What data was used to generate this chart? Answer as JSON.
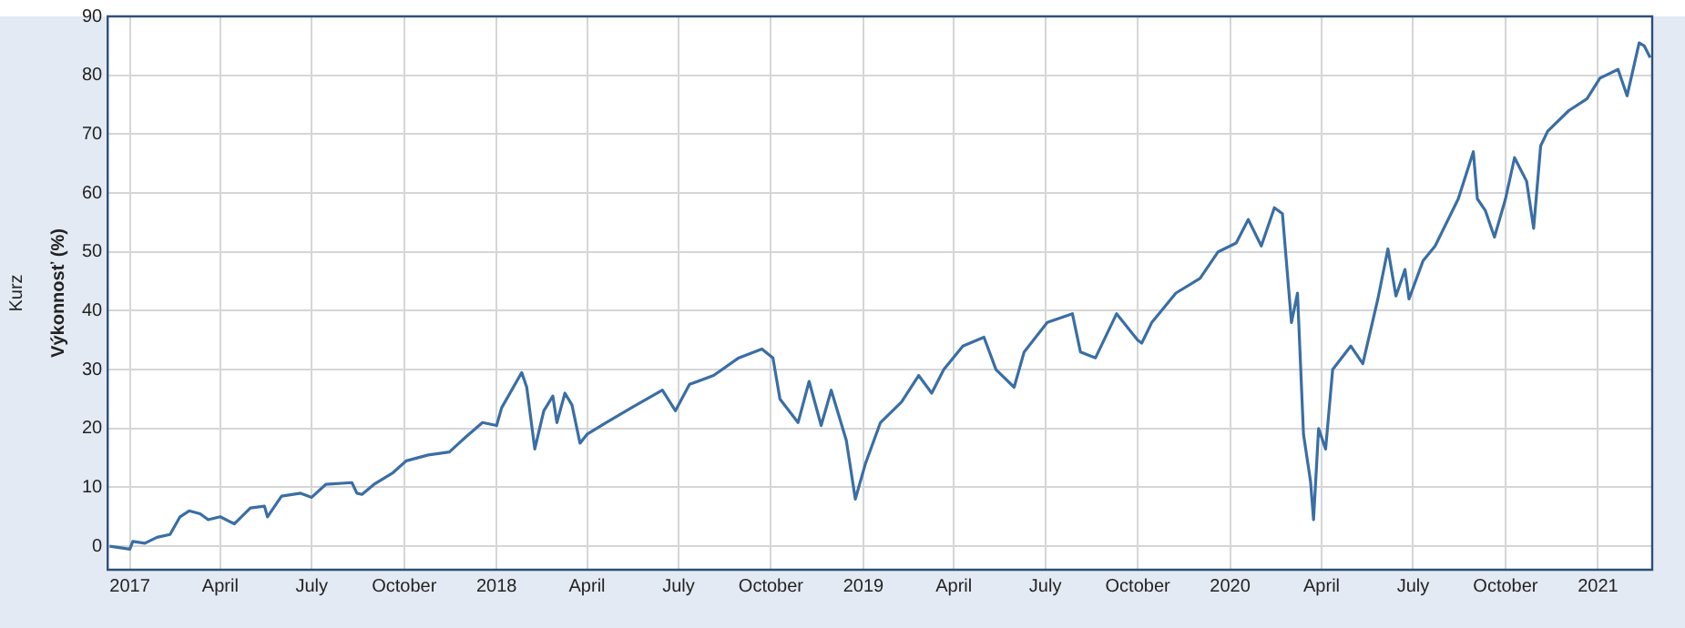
{
  "chart_data": {
    "type": "line",
    "ylabel": "Výkonnosť (%)",
    "annotations": [
      "Kurz"
    ],
    "grid": true,
    "legend": false,
    "marker": "none",
    "line_style": "solid",
    "xlim": [
      "2016-12-10",
      "2021-02-24"
    ],
    "ylim": [
      -4,
      90
    ],
    "yticks": [
      0,
      10,
      20,
      30,
      40,
      50,
      60,
      70,
      80,
      90
    ],
    "xticks": [
      {
        "value": "2017-01-01",
        "label": "2017"
      },
      {
        "value": "2017-04-01",
        "label": "April"
      },
      {
        "value": "2017-07-01",
        "label": "July"
      },
      {
        "value": "2017-10-01",
        "label": "October"
      },
      {
        "value": "2018-01-01",
        "label": "2018"
      },
      {
        "value": "2018-04-01",
        "label": "April"
      },
      {
        "value": "2018-07-01",
        "label": "July"
      },
      {
        "value": "2018-10-01",
        "label": "October"
      },
      {
        "value": "2019-01-01",
        "label": "2019"
      },
      {
        "value": "2019-04-01",
        "label": "April"
      },
      {
        "value": "2019-07-01",
        "label": "July"
      },
      {
        "value": "2019-10-01",
        "label": "October"
      },
      {
        "value": "2020-01-01",
        "label": "2020"
      },
      {
        "value": "2020-04-01",
        "label": "April"
      },
      {
        "value": "2020-07-01",
        "label": "July"
      },
      {
        "value": "2020-10-01",
        "label": "October"
      },
      {
        "value": "2021-01-01",
        "label": "2021"
      }
    ],
    "series": [
      {
        "color": "#3a6ea5",
        "x": [
          "2016-12-12",
          "2017-01-01",
          "2017-01-04",
          "2017-01-16",
          "2017-01-28",
          "2017-02-10",
          "2017-02-20",
          "2017-03-01",
          "2017-03-12",
          "2017-03-20",
          "2017-04-01",
          "2017-04-15",
          "2017-05-01",
          "2017-05-15",
          "2017-05-18",
          "2017-06-01",
          "2017-06-20",
          "2017-07-01",
          "2017-07-15",
          "2017-08-10",
          "2017-08-15",
          "2017-08-20",
          "2017-09-01",
          "2017-09-20",
          "2017-10-03",
          "2017-10-25",
          "2017-11-15",
          "2017-12-01",
          "2017-12-18",
          "2018-01-01",
          "2018-01-06",
          "2018-01-26",
          "2018-01-31",
          "2018-02-08",
          "2018-02-17",
          "2018-02-26",
          "2018-03-02",
          "2018-03-10",
          "2018-03-17",
          "2018-03-25",
          "2018-04-01",
          "2018-04-20",
          "2018-05-15",
          "2018-06-15",
          "2018-06-28",
          "2018-07-12",
          "2018-08-05",
          "2018-08-30",
          "2018-09-22",
          "2018-10-03",
          "2018-10-10",
          "2018-10-28",
          "2018-11-08",
          "2018-11-20",
          "2018-11-30",
          "2018-12-15",
          "2018-12-24",
          "2019-01-03",
          "2019-01-18",
          "2019-02-08",
          "2019-02-25",
          "2019-03-10",
          "2019-03-22",
          "2019-04-10",
          "2019-05-01",
          "2019-05-13",
          "2019-05-31",
          "2019-06-10",
          "2019-07-03",
          "2019-07-28",
          "2019-08-05",
          "2019-08-20",
          "2019-09-10",
          "2019-10-01",
          "2019-10-05",
          "2019-10-15",
          "2019-11-08",
          "2019-12-02",
          "2019-12-20",
          "2020-01-07",
          "2020-01-19",
          "2020-02-01",
          "2020-02-14",
          "2020-02-22",
          "2020-03-02",
          "2020-03-08",
          "2020-03-14",
          "2020-03-21",
          "2020-03-24",
          "2020-03-29",
          "2020-04-05",
          "2020-04-12",
          "2020-04-30",
          "2020-05-12",
          "2020-05-27",
          "2020-06-06",
          "2020-06-14",
          "2020-06-23",
          "2020-06-27",
          "2020-07-11",
          "2020-07-23",
          "2020-08-15",
          "2020-08-30",
          "2020-09-03",
          "2020-09-11",
          "2020-09-20",
          "2020-10-01",
          "2020-10-10",
          "2020-10-22",
          "2020-10-29",
          "2020-11-05",
          "2020-11-12",
          "2020-12-03",
          "2020-12-21",
          "2021-01-03",
          "2021-01-21",
          "2021-01-30",
          "2021-02-11",
          "2021-02-16",
          "2021-02-22"
        ],
        "values": [
          0,
          -0.5,
          0.8,
          0.5,
          1.5,
          2,
          5,
          6,
          5.5,
          4.5,
          5,
          3.8,
          6.5,
          6.8,
          5,
          8.5,
          9,
          8.3,
          10.5,
          10.8,
          9,
          8.8,
          10.5,
          12.5,
          14.5,
          15.5,
          16,
          18.5,
          21,
          20.5,
          23.5,
          29.5,
          27,
          16.5,
          23,
          25.5,
          21,
          26,
          24,
          17.5,
          19,
          21,
          23.5,
          26.5,
          23,
          27.5,
          29,
          32,
          33.5,
          32,
          25,
          21,
          28,
          20.5,
          26.5,
          18,
          8,
          14,
          21,
          24.5,
          29,
          26,
          30,
          34,
          35.5,
          30,
          27,
          33,
          38,
          39.5,
          33,
          32,
          39.5,
          35,
          34.5,
          38,
          43,
          45.5,
          50,
          51.5,
          55.5,
          51,
          57.5,
          56.5,
          38,
          43,
          19,
          11,
          4.5,
          20,
          16.5,
          30,
          34,
          31,
          42,
          50.5,
          42.5,
          47,
          42,
          48.5,
          51,
          59,
          67,
          59,
          57,
          52.5,
          59,
          66,
          62,
          54,
          68,
          70.5,
          74,
          76,
          79.5,
          81,
          76.5,
          85.5,
          85,
          83
        ]
      }
    ]
  }
}
